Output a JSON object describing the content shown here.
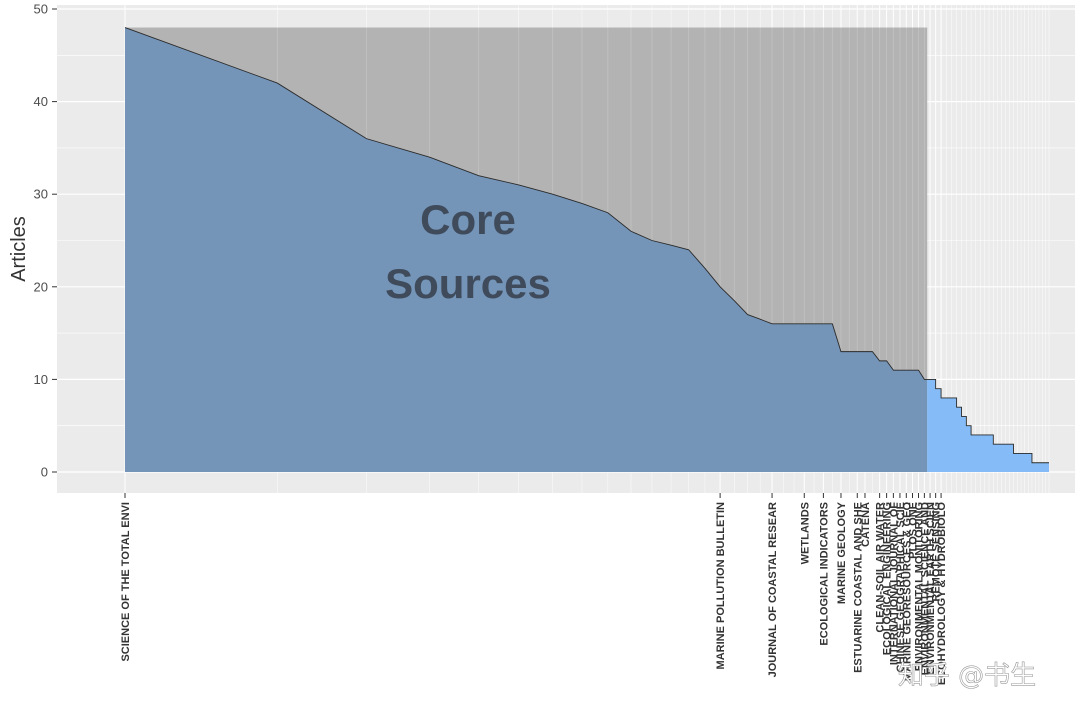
{
  "chart_data": {
    "type": "area",
    "ylabel": "Articles",
    "xlabel": "",
    "ylim": [
      0,
      50
    ],
    "yticks": [
      0,
      10,
      20,
      30,
      40,
      50
    ],
    "grid": true,
    "core_label": [
      "Core",
      "Sources"
    ],
    "core_count": 38,
    "total_sources": 67,
    "values": [
      48,
      42,
      36,
      34,
      32,
      31,
      30,
      29,
      28,
      26,
      25,
      24.5,
      24,
      22,
      20,
      18.5,
      17,
      16.5,
      16,
      16,
      16,
      16,
      16,
      16,
      16,
      13,
      13,
      13,
      13,
      13,
      12,
      12,
      11,
      11,
      11,
      11,
      11,
      10,
      10,
      9,
      8,
      8,
      8,
      7,
      6,
      5,
      4,
      4,
      4,
      4,
      4,
      3,
      3,
      3,
      3,
      3,
      2,
      2,
      2,
      2,
      2,
      1,
      1,
      1,
      1,
      1,
      1
    ],
    "labeled_ticks": [
      {
        "index": 0,
        "label": "SCIENCE OF THE TOTAL ENVI"
      },
      {
        "index": 14,
        "label": "MARINE POLLUTION BULLETIN"
      },
      {
        "index": 18,
        "label": "JOURNAL OF COASTAL RESEAR"
      },
      {
        "index": 21,
        "label": "WETLANDS"
      },
      {
        "index": 23,
        "label": "ECOLOGICAL INDICATORS"
      },
      {
        "index": 25,
        "label": "MARINE GEOLOGY"
      },
      {
        "index": 27,
        "label": "ESTUARINE COASTAL AND SHE"
      },
      {
        "index": 28,
        "label": "CATENA"
      },
      {
        "index": 30,
        "label": "CLEAN-SOIL AIR WATER"
      },
      {
        "index": 31,
        "label": "ECOLOGICAL ENGINEERING"
      },
      {
        "index": 32,
        "label": "INTERNATIONAL JOURNAL OF"
      },
      {
        "index": 33,
        "label": "CHINESE GEOGRAPHICAL SCIE"
      },
      {
        "index": 34,
        "label": "MARINE GEORESOURCES & GEO"
      },
      {
        "index": 35,
        "label": "PLOS ONE"
      },
      {
        "index": 36,
        "label": "ENVIRONMENTAL MONITORING"
      },
      {
        "index": 37,
        "label": "ENVIRONMENTAL SCIENCE AND"
      },
      {
        "index": 38,
        "label": "ENVIRONMENTAL EARTH SCIEN"
      },
      {
        "index": 39,
        "label": "REMOTE SENSING"
      },
      {
        "index": 40,
        "label": "ECOHYDROLOGY & HYDROBIOLO"
      }
    ],
    "colors": {
      "core_area": "#7494b8",
      "tail_area": "#85bcf7",
      "core_band": "#b3b3b3",
      "panel": "#ebebeb",
      "grid": "#ffffff"
    }
  },
  "watermark": "知乎 @书生"
}
